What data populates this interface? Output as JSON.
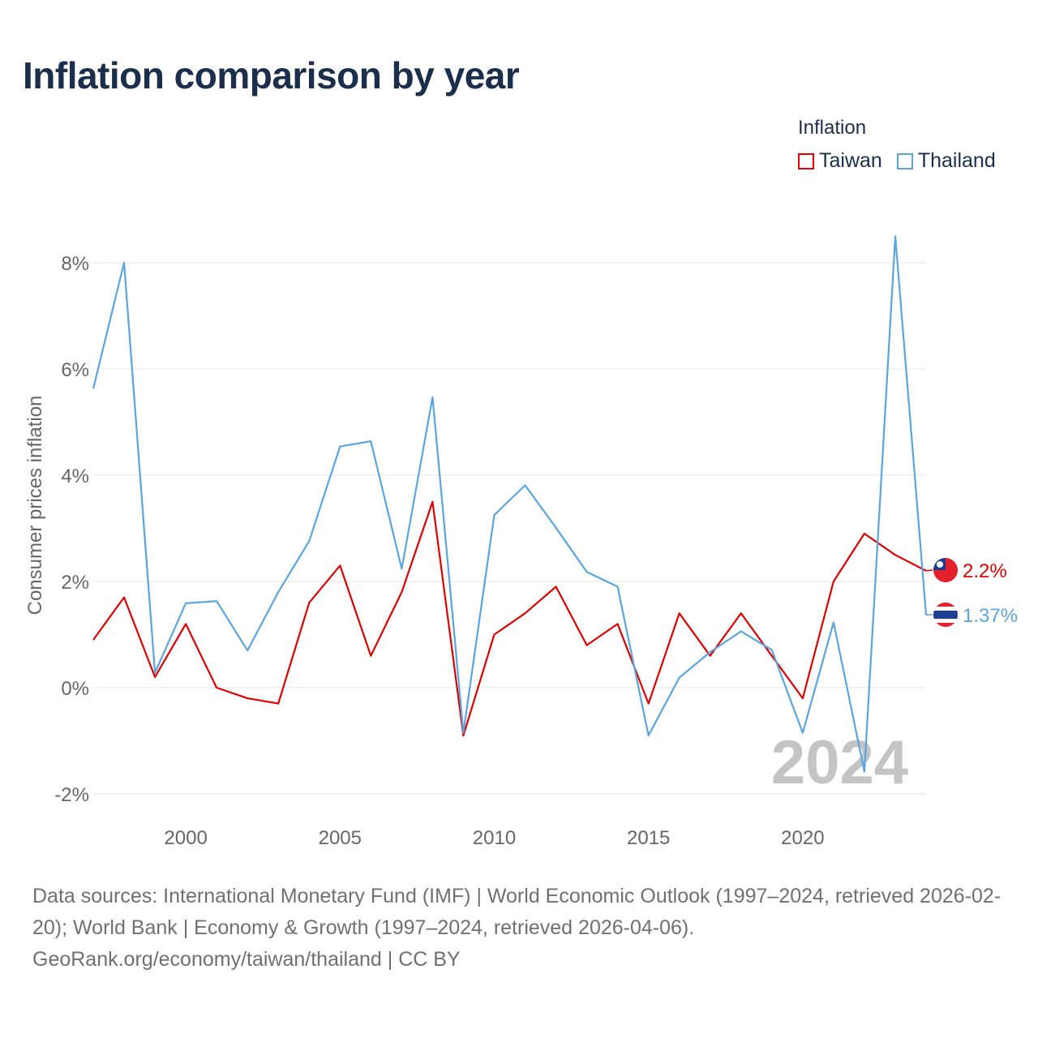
{
  "title": "Inflation comparison by year",
  "legend": {
    "title": "Inflation",
    "items": [
      {
        "label": "Taiwan",
        "color": "#e00000"
      },
      {
        "label": "Thailand",
        "color": "#5aa5e0"
      }
    ]
  },
  "chart_data": {
    "type": "line",
    "title": "Inflation comparison by year",
    "xlabel": "",
    "ylabel": "Consumer prices inflation",
    "xlim": [
      1997,
      2024
    ],
    "ylim": [
      -2,
      8.5
    ],
    "y_ticks": [
      -2,
      0,
      2,
      4,
      6,
      8
    ],
    "y_tick_labels": [
      "-2%",
      "0%",
      "2%",
      "4%",
      "6%",
      "8%"
    ],
    "x_ticks": [
      2000,
      2005,
      2010,
      2015,
      2020
    ],
    "x_tick_labels": [
      "2000",
      "2005",
      "2010",
      "2015",
      "2020"
    ],
    "grid": true,
    "year_watermark": "2024",
    "x": [
      1997,
      1998,
      1999,
      2000,
      2001,
      2002,
      2003,
      2004,
      2005,
      2006,
      2007,
      2008,
      2009,
      2010,
      2011,
      2012,
      2013,
      2014,
      2015,
      2016,
      2017,
      2018,
      2019,
      2020,
      2021,
      2022,
      2023,
      2024
    ],
    "series": [
      {
        "name": "Taiwan",
        "color": "#e00000",
        "end_label": "2.2%",
        "flag_icon": "taiwan-flag-icon",
        "values": [
          0.9,
          1.7,
          0.2,
          1.2,
          0.0,
          -0.2,
          -0.3,
          1.6,
          2.3,
          0.6,
          1.8,
          3.5,
          -0.9,
          1.0,
          1.4,
          1.9,
          0.8,
          1.2,
          -0.3,
          1.4,
          0.6,
          1.4,
          0.6,
          -0.2,
          2.0,
          2.9,
          2.5,
          2.2
        ]
      },
      {
        "name": "Thailand",
        "color": "#5aa5e0",
        "end_label": "1.37%",
        "flag_icon": "thailand-flag-icon",
        "values": [
          5.63,
          8.0,
          0.28,
          1.59,
          1.63,
          0.7,
          1.8,
          2.76,
          4.54,
          4.64,
          2.24,
          5.47,
          -0.85,
          3.25,
          3.81,
          3.01,
          2.18,
          1.9,
          -0.9,
          0.19,
          0.67,
          1.06,
          0.71,
          -0.85,
          1.23,
          -1.58,
          8.5,
          1.37
        ]
      }
    ]
  },
  "footer": {
    "sources": "Data sources: International Monetary Fund (IMF) | World Economic Outlook (1997–2024, retrieved 2026-02-20); World Bank | Economy & Growth (1997–2024, retrieved 2026-04-06).",
    "credit": "GeoRank.org/economy/taiwan/thailand | CC BY"
  }
}
